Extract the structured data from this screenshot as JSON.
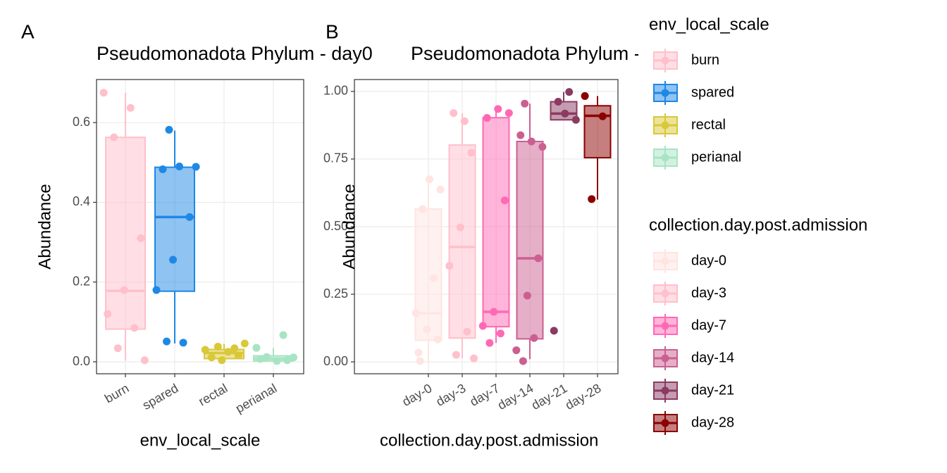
{
  "chart_data": [
    {
      "type": "box",
      "panel_label": "A",
      "title": "Pseudomonadota Phylum - day0",
      "x_label": "env_local_scale",
      "y_label": "Abundance",
      "categories": [
        "burn",
        "spared",
        "rectal",
        "perianal"
      ],
      "colors": [
        "#ffc0cb",
        "#1e88e5",
        "#d9c838",
        "#a8e4c4"
      ],
      "boxes": [
        {
          "low": 0.003,
          "q1": 0.082,
          "median": 0.178,
          "q3": 0.563,
          "high": 0.675
        },
        {
          "low": 0.046,
          "q1": 0.177,
          "median": 0.363,
          "q3": 0.488,
          "high": 0.58
        },
        {
          "low": 0.0,
          "q1": 0.008,
          "median": 0.022,
          "q3": 0.031,
          "high": 0.045
        },
        {
          "low": 0.0,
          "q1": 0.002,
          "median": 0.008,
          "q3": 0.015,
          "high": 0.035
        }
      ],
      "points": [
        [
          0.675,
          0.637,
          0.563,
          0.31,
          0.18,
          0.12,
          0.085,
          0.034,
          0.004
        ],
        [
          0.582,
          0.489,
          0.49,
          0.483,
          0.363,
          0.256,
          0.18,
          0.048,
          0.051
        ],
        [
          0.034,
          0.038,
          0.046,
          0.025,
          0.011,
          0.016,
          0.004,
          0.03
        ],
        [
          0.035,
          0.067,
          0.012,
          0.011,
          0.002,
          0.007,
          0.004
        ]
      ],
      "ylim": [
        -0.03,
        0.708
      ],
      "yticks": [
        {
          "value": 0,
          "label": "0.0"
        },
        0.2,
        0.4,
        0.6
      ],
      "grid": true,
      "legend_title": "env_local_scale"
    },
    {
      "type": "box",
      "panel_label": "B",
      "title": "Pseudomonadota Phylum - all days",
      "x_label": "collection.day.post.admission",
      "y_label": "Abundance",
      "categories": [
        "day-0",
        "day-3",
        "day-7",
        "day-14",
        "day-21",
        "day-28"
      ],
      "colors": [
        "#ffe4e1",
        "#ffc0cb",
        "#ff69b4",
        "#cc5f91",
        "#8b3a62",
        "#8b0000"
      ],
      "boxes": [
        {
          "low": 0.0,
          "q1": 0.08,
          "median": 0.18,
          "q3": 0.565,
          "high": 0.675
        },
        {
          "low": 0.013,
          "q1": 0.088,
          "median": 0.425,
          "q3": 0.802,
          "high": 0.92
        },
        {
          "low": 0.07,
          "q1": 0.13,
          "median": 0.185,
          "q3": 0.903,
          "high": 0.935
        },
        {
          "low": 0.01,
          "q1": 0.085,
          "median": 0.383,
          "q3": 0.815,
          "high": 0.955
        },
        {
          "low": 0.895,
          "q1": 0.895,
          "median": 0.918,
          "q3": 0.962,
          "high": 0.998
        },
        {
          "low": 0.6,
          "q1": 0.755,
          "median": 0.91,
          "q3": 0.947,
          "high": 0.983
        }
      ],
      "points": [
        [
          0.003,
          0.083,
          0.12,
          0.18,
          0.31,
          0.565,
          0.637,
          0.675,
          0.034
        ],
        [
          0.89,
          0.92,
          0.773,
          0.497,
          0.355,
          0.112,
          0.026,
          0.013
        ],
        [
          0.92,
          0.935,
          0.902,
          0.597,
          0.185,
          0.133,
          0.105,
          0.07
        ],
        [
          0.955,
          0.795,
          0.815,
          0.838,
          0.383,
          0.245,
          0.043,
          0.088,
          0.003
        ],
        [
          0.998,
          0.962,
          0.895,
          0.918,
          0.115
        ],
        [
          0.983,
          0.908,
          0.602
        ]
      ],
      "ylim": [
        -0.044,
        1.044
      ],
      "yticks": [
        {
          "value": 0,
          "label": "0.00"
        },
        0.25,
        {
          "value": 0.5,
          "label": "0.50"
        },
        0.75,
        {
          "value": 1,
          "label": "1.00"
        }
      ],
      "grid": true,
      "legend_title": "collection.day.post.admission"
    }
  ]
}
